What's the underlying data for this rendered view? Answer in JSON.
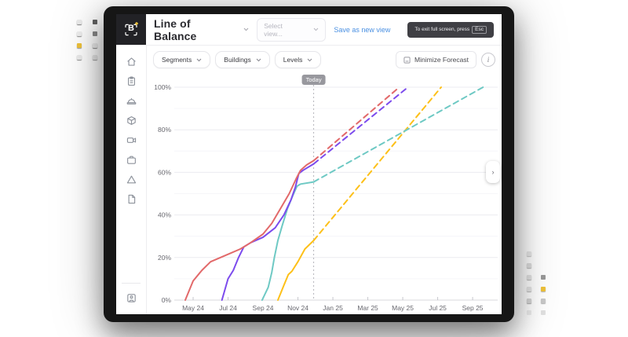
{
  "header": {
    "logo_letter": "B",
    "title": "Line of Balance",
    "view_select": {
      "placeholder": "Select view..."
    },
    "save_view_label": "Save as new view",
    "fullscreen_toast": {
      "text": "To exit full screen, press",
      "key": "Esc"
    }
  },
  "sidebar": {
    "items": [
      {
        "icon": "home-icon"
      },
      {
        "icon": "clipboard-icon"
      },
      {
        "icon": "hard-hat-icon"
      },
      {
        "icon": "package-icon"
      },
      {
        "icon": "camera-icon"
      },
      {
        "icon": "briefcase-icon"
      },
      {
        "icon": "prism-icon"
      },
      {
        "icon": "document-icon"
      }
    ],
    "bottom_item": {
      "icon": "user-avatar-icon"
    }
  },
  "toolbar": {
    "filters": [
      {
        "label": "Segments"
      },
      {
        "label": "Buildings"
      },
      {
        "label": "Levels"
      }
    ],
    "minimize_forecast_label": "Minimize Forecast"
  },
  "icons": {
    "info": "i",
    "expand_panel": "›"
  },
  "colors": {
    "accent_blue": "#4a90e2",
    "series_red": "#e2696a",
    "series_purple": "#7c4bed",
    "series_teal": "#6ec9c4",
    "series_yellow": "#fdc019",
    "today_line": "#b5b5bb",
    "today_badge": "#98989e",
    "grid_major": "#ebebf0",
    "grid_minor": "#f6f6f9",
    "axis_line": "#d8d8dd",
    "axis_text": "#68686f"
  },
  "chart_data": {
    "type": "line",
    "title": "",
    "x_axis": {
      "unit": "months since May 2024",
      "labels": [
        "May 24",
        "Jul 24",
        "Sep 24",
        "Nov 24",
        "Jan 25",
        "Mar 25",
        "May 25",
        "Jul 25",
        "Sep 25"
      ],
      "label_positions": [
        0,
        2,
        4,
        6,
        8,
        10,
        12,
        14,
        16
      ],
      "range": [
        -0.9,
        17.3
      ]
    },
    "y_axis": {
      "ticks": [
        "0%",
        "20%",
        "40%",
        "60%",
        "80%",
        "100%"
      ],
      "range": [
        0,
        100
      ],
      "major_step": 20,
      "minor_step": 10
    },
    "grid": true,
    "legend": "none",
    "today": {
      "x": 6.9,
      "label": "Today"
    },
    "series": [
      {
        "name": "series-yellow",
        "color": "#fdc019",
        "actual": [
          [
            4.85,
            0
          ],
          [
            5.2,
            7
          ],
          [
            5.45,
            12
          ],
          [
            5.65,
            13.5
          ],
          [
            6.0,
            18
          ],
          [
            6.4,
            24
          ],
          [
            6.9,
            28
          ]
        ],
        "forecast": [
          [
            6.9,
            28
          ],
          [
            14.2,
            100
          ]
        ]
      },
      {
        "name": "series-teal",
        "color": "#6ec9c4",
        "actual": [
          [
            3.95,
            0
          ],
          [
            4.3,
            6
          ],
          [
            4.5,
            13
          ],
          [
            4.65,
            20
          ],
          [
            4.85,
            28
          ],
          [
            5.1,
            35
          ],
          [
            5.4,
            43
          ],
          [
            5.7,
            49
          ],
          [
            5.95,
            53.5
          ],
          [
            6.15,
            54.5
          ],
          [
            6.9,
            55.5
          ]
        ],
        "forecast": [
          [
            6.9,
            55.5
          ],
          [
            16.6,
            100
          ]
        ]
      },
      {
        "name": "series-purple",
        "color": "#7c4bed",
        "actual": [
          [
            1.65,
            0
          ],
          [
            2.0,
            10
          ],
          [
            2.3,
            14
          ],
          [
            2.6,
            20
          ],
          [
            2.9,
            25
          ],
          [
            3.3,
            27
          ],
          [
            4.0,
            29.5
          ],
          [
            4.7,
            34
          ],
          [
            5.2,
            40
          ],
          [
            5.6,
            47
          ],
          [
            5.85,
            53
          ],
          [
            6.05,
            59.5
          ],
          [
            6.3,
            61
          ],
          [
            6.9,
            64
          ]
        ],
        "forecast": [
          [
            6.9,
            64
          ],
          [
            12.3,
            100
          ]
        ]
      },
      {
        "name": "series-red",
        "color": "#e2696a",
        "actual": [
          [
            -0.45,
            0
          ],
          [
            0.0,
            9
          ],
          [
            0.5,
            14
          ],
          [
            1.0,
            18
          ],
          [
            2.0,
            21.5
          ],
          [
            2.7,
            24
          ],
          [
            3.3,
            27
          ],
          [
            4.0,
            31
          ],
          [
            4.5,
            36
          ],
          [
            5.0,
            43
          ],
          [
            5.5,
            50
          ],
          [
            5.9,
            57
          ],
          [
            6.15,
            61
          ],
          [
            6.5,
            63.5
          ],
          [
            6.9,
            65.5
          ]
        ],
        "forecast": [
          [
            6.9,
            65.5
          ],
          [
            11.8,
            100
          ]
        ]
      }
    ]
  }
}
